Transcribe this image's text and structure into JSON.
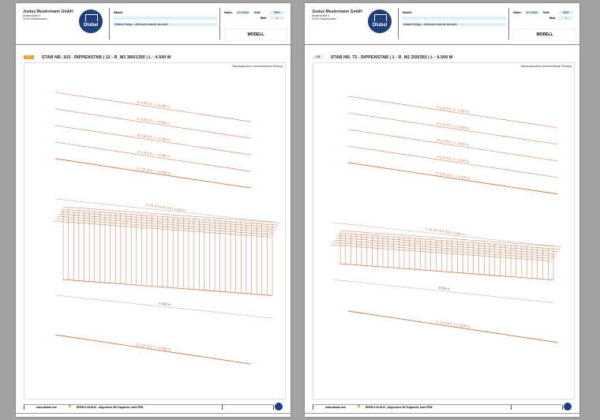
{
  "accent_color": "#c8784f",
  "pages": [
    {
      "company": "Justus Mustermann GmbH",
      "street": "Musterstraße 5",
      "city": "01234 Musterhausen",
      "logo": "Dlubal",
      "model_label": "Modell:",
      "model_value": "",
      "project": "Seismic Design - reinforced concrete structure",
      "date_label": "Datum",
      "date": "12.3.2024",
      "page_label": "Seite",
      "page": "25/37",
      "sheet_label": "Blatt",
      "sheet": "1",
      "section_title_box": "MODELL",
      "section_no": "1.7",
      "section_color": "#f0a030",
      "section_title": "STAB NR. 103 - RIPPENSTAB | 12 - R_M1 380/1350 | L : 4.500 M",
      "view_direction": "Standardansicht in axonometrischer Richtung",
      "bars": [
        "⑤ 6 Ø 8.0, l = 4.500 m",
        "④ 6 Ø 8.0, l = 4.500 m",
        "③ 6 Ø 8.0, l = 4.500 m",
        "② 6 Ø 8.0, l = 4.500 m",
        "① 2 Ø 14.0, l = 4.500 m"
      ],
      "stirrups": "① 41 Ø 8.0-0.110 | 4.500 m",
      "stirrup_count": 41,
      "dimension": "4.500 m",
      "bottom_bar": "① 2 Ø 14.0, l = 4.500 m",
      "footer_url": "www.dlubal.com",
      "footer_software": "RFEM 6.05.0010 - Allgemeine 3D-Tragwerke nach FEM"
    },
    {
      "company": "Justus Mustermann GmbH",
      "street": "Musterstraße 5",
      "city": "01234 Musterhausen",
      "logo": "Dlubal",
      "model_label": "Modell:",
      "model_value": "",
      "project": "Seismic Design - reinforced concrete structure",
      "date_label": "Datum",
      "date": "12.3.2024",
      "page_label": "Seite",
      "page": "26/37",
      "sheet_label": "Blatt",
      "sheet": "1",
      "section_title_box": "MODELL",
      "section_no": "1.8",
      "section_color": "#ddeef8",
      "section_title": "STAB NR. 73 - RIPPENSTAB | 1 - R_M1 250/350 | L : 4.500 M",
      "view_direction": "Standardansicht in axonometrischer Richtung",
      "bars": [
        "⑤ 5 Ø 8.0, l = 4.500 m",
        "④ 5 Ø 8.0, l = 4.500 m",
        "③ 5 Ø 8.0, l = 4.500 m",
        "② 5 Ø 8.0, l = 4.500 m",
        "① 2 Ø 14.0, l = 4.500 m"
      ],
      "stirrups": "① 41 Ø 8.0-0.110 | 4.500 m",
      "stirrup_count": 41,
      "dimension": "4.500 m",
      "bottom_bar": "① 2 Ø 14.0, l = 4.500 m",
      "footer_url": "www.dlubal.com",
      "footer_software": "RFEM 6.05.0010 - Allgemeine 3D-Tragwerke nach FEM"
    }
  ]
}
